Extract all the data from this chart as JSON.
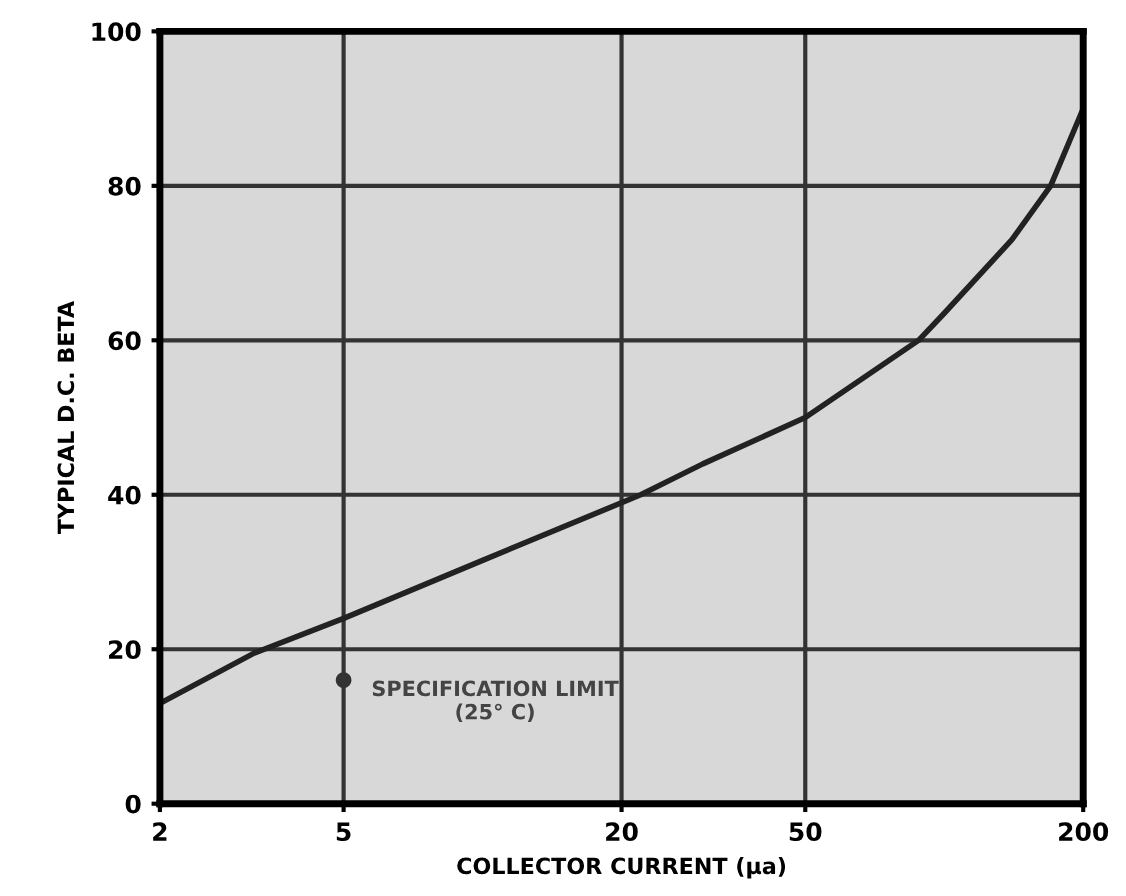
{
  "chart_data": {
    "type": "line",
    "xlabel": "COLLECTOR CURRENT (μa)",
    "ylabel": "TYPICAL D.C. BETA",
    "log": "x",
    "xlim": [
      2,
      200
    ],
    "xticks": [
      2,
      5,
      20,
      50,
      200
    ],
    "ylim": [
      0,
      100
    ],
    "yticks": [
      0,
      20,
      40,
      60,
      80,
      100
    ],
    "grid": true,
    "legend": false,
    "series": [
      {
        "color": "#222222",
        "x": [
          2,
          3.2,
          5,
          10,
          22,
          30,
          50,
          88,
          100,
          140,
          170,
          200
        ],
        "values": [
          13,
          19.5,
          24,
          31.5,
          40,
          44,
          50,
          60,
          63.5,
          73,
          80,
          90
        ]
      },
      {
        "type": "scatter",
        "color": "#333333",
        "marker": "circle",
        "x": [
          5
        ],
        "values": [
          16
        ]
      }
    ],
    "annotations": [
      {
        "text": "SPECIFICATION LIMIT\n(25° C)",
        "x": 5,
        "y": 16
      }
    ]
  }
}
